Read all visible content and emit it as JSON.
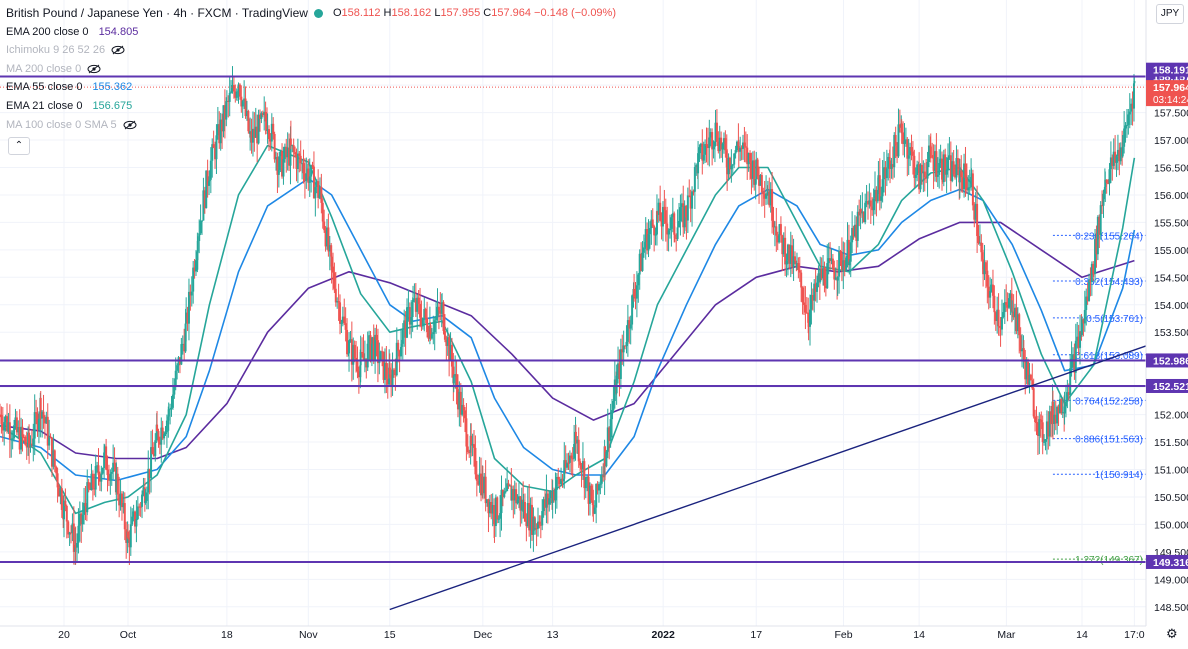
{
  "legend": {
    "title": "British Pound / Japanese Yen · 4h · FXCM · TradingView",
    "ohlc": {
      "o_label": "O",
      "o": "158.112",
      "h_label": "H",
      "h": "158.162",
      "l_label": "L",
      "l": "157.955",
      "c_label": "C",
      "c": "157.964",
      "change": "−0.148 (−0.09%)"
    },
    "indicators": [
      {
        "name": "EMA 200 close 0",
        "value": "154.805",
        "color": "#5b2c9f",
        "hidden": false
      },
      {
        "name": "Ichimoku 9 26 52 26",
        "value": "",
        "color": "#b2b5be",
        "hidden": true
      },
      {
        "name": "MA 200 close 0",
        "value": "",
        "color": "#b2b5be",
        "hidden": true
      },
      {
        "name": "EMA 55 close 0",
        "value": "155.362",
        "color": "#1e88e5",
        "hidden": false
      },
      {
        "name": "EMA 21 close 0",
        "value": "156.675",
        "color": "#26a69a",
        "hidden": false
      },
      {
        "name": "MA 100 close 0 SMA 5",
        "value": "",
        "color": "#b2b5be",
        "hidden": true
      }
    ],
    "collapse_symbol": "⌃"
  },
  "currency_button": "JPY",
  "settings_icon": "gear-icon",
  "colors": {
    "up": "#26a69a",
    "down": "#ef5350",
    "ema21": "#26a69a",
    "ema55": "#1e88e5",
    "ema200": "#5b2c9f",
    "hline": "#5e35b1",
    "trendline": "#1a237e",
    "fib_line": "#2962ff",
    "fib_text": "#2962ff",
    "fib_ext_text": "#43a047"
  },
  "chart_data": {
    "type": "candlestick",
    "symbol": "GBPJPY",
    "timeframe": "4h",
    "ylim": [
      148.15,
      159.55
    ],
    "y_ticks": [
      "158.000",
      "157.500",
      "157.000",
      "156.500",
      "156.000",
      "155.500",
      "155.000",
      "154.500",
      "154.000",
      "153.500",
      "153.000",
      "152.500",
      "152.000",
      "151.500",
      "151.000",
      "150.500",
      "150.000",
      "149.500",
      "149.000",
      "148.500"
    ],
    "x_ticks": [
      "20",
      "Oct",
      "18",
      "Nov",
      "15",
      "Dec",
      "13",
      "2022",
      "17",
      "Feb",
      "14",
      "Mar",
      "14",
      "17:0"
    ],
    "x_tick_dates": [
      "2021-09-20",
      "2021-10-01",
      "2021-10-18",
      "2021-11-01",
      "2021-11-15",
      "2021-12-01",
      "2021-12-13",
      "2022-01-01",
      "2022-01-17",
      "2022-02-01",
      "2022-02-14",
      "2022-03-01",
      "2022-03-14",
      "2022-03-23"
    ],
    "x_range": [
      "2021-09-09",
      "2022-03-25"
    ],
    "price_series": [
      [
        "2021-09-09",
        152.0
      ],
      [
        "2021-09-14",
        151.4
      ],
      [
        "2021-09-16",
        152.2
      ],
      [
        "2021-09-20",
        150.3
      ],
      [
        "2021-09-22",
        149.6
      ],
      [
        "2021-09-24",
        150.5
      ],
      [
        "2021-09-27",
        151.2
      ],
      [
        "2021-09-29",
        150.8
      ],
      [
        "2021-10-01",
        149.7
      ],
      [
        "2021-10-04",
        150.7
      ],
      [
        "2021-10-06",
        151.6
      ],
      [
        "2021-10-08",
        152.0
      ],
      [
        "2021-10-11",
        153.6
      ],
      [
        "2021-10-13",
        155.3
      ],
      [
        "2021-10-15",
        156.5
      ],
      [
        "2021-10-18",
        157.6
      ],
      [
        "2021-10-20",
        158.1
      ],
      [
        "2021-10-22",
        157.0
      ],
      [
        "2021-10-25",
        157.4
      ],
      [
        "2021-10-27",
        156.5
      ],
      [
        "2021-10-29",
        156.8
      ],
      [
        "2021-11-01",
        156.4
      ],
      [
        "2021-11-03",
        156.0
      ],
      [
        "2021-11-05",
        154.6
      ],
      [
        "2021-11-08",
        153.2
      ],
      [
        "2021-11-10",
        152.9
      ],
      [
        "2021-11-12",
        153.3
      ],
      [
        "2021-11-15",
        152.6
      ],
      [
        "2021-11-17",
        153.4
      ],
      [
        "2021-11-19",
        154.0
      ],
      [
        "2021-11-22",
        153.6
      ],
      [
        "2021-11-24",
        153.9
      ],
      [
        "2021-11-26",
        152.7
      ],
      [
        "2021-11-29",
        151.3
      ],
      [
        "2021-12-01",
        150.7
      ],
      [
        "2021-12-03",
        150.2
      ],
      [
        "2021-12-06",
        150.6
      ],
      [
        "2021-12-08",
        150.3
      ],
      [
        "2021-12-10",
        150.0
      ],
      [
        "2021-12-13",
        150.6
      ],
      [
        "2021-12-15",
        150.9
      ],
      [
        "2021-12-17",
        151.6
      ],
      [
        "2021-12-20",
        150.2
      ],
      [
        "2021-12-22",
        151.3
      ],
      [
        "2021-12-24",
        152.6
      ],
      [
        "2021-12-27",
        154.2
      ],
      [
        "2021-12-29",
        155.2
      ],
      [
        "2021-12-31",
        155.6
      ],
      [
        "2022-01-03",
        155.4
      ],
      [
        "2022-01-05",
        155.7
      ],
      [
        "2022-01-07",
        156.6
      ],
      [
        "2022-01-10",
        157.2
      ],
      [
        "2022-01-12",
        156.6
      ],
      [
        "2022-01-14",
        156.9
      ],
      [
        "2022-01-17",
        156.4
      ],
      [
        "2022-01-19",
        156.1
      ],
      [
        "2022-01-21",
        155.2
      ],
      [
        "2022-01-24",
        154.6
      ],
      [
        "2022-01-26",
        153.8
      ],
      [
        "2022-01-28",
        154.5
      ],
      [
        "2022-01-31",
        154.7
      ],
      [
        "2022-02-02",
        155.0
      ],
      [
        "2022-02-04",
        155.6
      ],
      [
        "2022-02-07",
        156.1
      ],
      [
        "2022-02-09",
        156.6
      ],
      [
        "2022-02-11",
        157.2
      ],
      [
        "2022-02-14",
        156.3
      ],
      [
        "2022-02-16",
        156.7
      ],
      [
        "2022-02-18",
        156.5
      ],
      [
        "2022-02-21",
        156.4
      ],
      [
        "2022-02-23",
        156.2
      ],
      [
        "2022-02-25",
        154.6
      ],
      [
        "2022-02-28",
        153.7
      ],
      [
        "2022-03-02",
        154.1
      ],
      [
        "2022-03-04",
        153.0
      ],
      [
        "2022-03-07",
        151.6
      ],
      [
        "2022-03-09",
        152.0
      ],
      [
        "2022-03-11",
        152.3
      ],
      [
        "2022-03-14",
        153.6
      ],
      [
        "2022-03-16",
        154.8
      ],
      [
        "2022-03-18",
        156.3
      ],
      [
        "2022-03-21",
        156.9
      ],
      [
        "2022-03-23",
        158.0
      ]
    ],
    "ema21_series": [
      [
        "2021-09-09",
        151.8
      ],
      [
        "2021-09-16",
        151.3
      ],
      [
        "2021-09-22",
        150.2
      ],
      [
        "2021-09-27",
        150.4
      ],
      [
        "2021-10-01",
        150.5
      ],
      [
        "2021-10-06",
        150.9
      ],
      [
        "2021-10-11",
        152.0
      ],
      [
        "2021-10-15",
        154.0
      ],
      [
        "2021-10-20",
        156.0
      ],
      [
        "2021-10-25",
        156.9
      ],
      [
        "2021-11-01",
        156.6
      ],
      [
        "2021-11-05",
        155.6
      ],
      [
        "2021-11-10",
        154.2
      ],
      [
        "2021-11-15",
        153.5
      ],
      [
        "2021-11-19",
        153.6
      ],
      [
        "2021-11-24",
        153.7
      ],
      [
        "2021-11-29",
        152.6
      ],
      [
        "2021-12-03",
        151.2
      ],
      [
        "2021-12-08",
        150.7
      ],
      [
        "2021-12-13",
        150.6
      ],
      [
        "2021-12-17",
        150.9
      ],
      [
        "2021-12-22",
        151.2
      ],
      [
        "2021-12-27",
        152.6
      ],
      [
        "2021-12-31",
        154.0
      ],
      [
        "2022-01-05",
        155.0
      ],
      [
        "2022-01-10",
        156.0
      ],
      [
        "2022-01-14",
        156.5
      ],
      [
        "2022-01-19",
        156.5
      ],
      [
        "2022-01-24",
        155.5
      ],
      [
        "2022-01-28",
        154.7
      ],
      [
        "2022-02-02",
        154.6
      ],
      [
        "2022-02-07",
        155.1
      ],
      [
        "2022-02-11",
        155.9
      ],
      [
        "2022-02-16",
        156.4
      ],
      [
        "2022-02-21",
        156.5
      ],
      [
        "2022-02-25",
        155.9
      ],
      [
        "2022-03-02",
        154.6
      ],
      [
        "2022-03-07",
        153.1
      ],
      [
        "2022-03-11",
        152.2
      ],
      [
        "2022-03-16",
        152.9
      ],
      [
        "2022-03-21",
        155.4
      ],
      [
        "2022-03-23",
        156.675
      ]
    ],
    "ema55_series": [
      [
        "2021-09-09",
        151.6
      ],
      [
        "2021-09-16",
        151.4
      ],
      [
        "2021-09-22",
        150.9
      ],
      [
        "2021-09-29",
        150.8
      ],
      [
        "2021-10-06",
        151.0
      ],
      [
        "2021-10-11",
        151.6
      ],
      [
        "2021-10-15",
        152.8
      ],
      [
        "2021-10-20",
        154.6
      ],
      [
        "2021-10-25",
        155.8
      ],
      [
        "2021-11-01",
        156.3
      ],
      [
        "2021-11-05",
        156.0
      ],
      [
        "2021-11-10",
        155.0
      ],
      [
        "2021-11-15",
        154.0
      ],
      [
        "2021-11-19",
        153.7
      ],
      [
        "2021-11-24",
        153.8
      ],
      [
        "2021-11-29",
        153.4
      ],
      [
        "2021-12-03",
        152.3
      ],
      [
        "2021-12-08",
        151.4
      ],
      [
        "2021-12-13",
        151.0
      ],
      [
        "2021-12-17",
        150.9
      ],
      [
        "2021-12-22",
        150.9
      ],
      [
        "2021-12-27",
        151.6
      ],
      [
        "2021-12-31",
        152.8
      ],
      [
        "2022-01-05",
        154.0
      ],
      [
        "2022-01-10",
        155.1
      ],
      [
        "2022-01-14",
        155.8
      ],
      [
        "2022-01-19",
        156.1
      ],
      [
        "2022-01-24",
        155.8
      ],
      [
        "2022-01-28",
        155.1
      ],
      [
        "2022-02-02",
        154.9
      ],
      [
        "2022-02-07",
        155.0
      ],
      [
        "2022-02-11",
        155.5
      ],
      [
        "2022-02-16",
        155.9
      ],
      [
        "2022-02-21",
        156.1
      ],
      [
        "2022-02-25",
        155.9
      ],
      [
        "2022-03-02",
        155.1
      ],
      [
        "2022-03-07",
        153.9
      ],
      [
        "2022-03-11",
        152.8
      ],
      [
        "2022-03-16",
        152.9
      ],
      [
        "2022-03-21",
        154.3
      ],
      [
        "2022-03-23",
        155.362
      ]
    ],
    "ema200_series": [
      [
        "2021-09-09",
        151.8
      ],
      [
        "2021-09-16",
        151.7
      ],
      [
        "2021-09-22",
        151.3
      ],
      [
        "2021-09-29",
        151.2
      ],
      [
        "2021-10-06",
        151.2
      ],
      [
        "2021-10-11",
        151.4
      ],
      [
        "2021-10-18",
        152.2
      ],
      [
        "2021-10-25",
        153.5
      ],
      [
        "2021-11-01",
        154.3
      ],
      [
        "2021-11-08",
        154.6
      ],
      [
        "2021-11-15",
        154.4
      ],
      [
        "2021-11-22",
        154.1
      ],
      [
        "2021-11-29",
        153.8
      ],
      [
        "2021-12-06",
        153.1
      ],
      [
        "2021-12-13",
        152.3
      ],
      [
        "2021-12-20",
        151.9
      ],
      [
        "2021-12-27",
        152.2
      ],
      [
        "2022-01-03",
        153.1
      ],
      [
        "2022-01-10",
        154.0
      ],
      [
        "2022-01-17",
        154.5
      ],
      [
        "2022-01-24",
        154.7
      ],
      [
        "2022-01-31",
        154.6
      ],
      [
        "2022-02-07",
        154.7
      ],
      [
        "2022-02-14",
        155.2
      ],
      [
        "2022-02-21",
        155.5
      ],
      [
        "2022-02-28",
        155.5
      ],
      [
        "2022-03-07",
        155.0
      ],
      [
        "2022-03-14",
        154.5
      ],
      [
        "2022-03-23",
        154.805
      ]
    ],
    "horizontal_levels": [
      {
        "price": 158.157,
        "label": "158.157"
      },
      {
        "price": 152.986,
        "label": "152.986"
      },
      {
        "price": 152.521,
        "label": "152.521"
      },
      {
        "price": 149.316,
        "label": "149.316"
      }
    ],
    "current_price": {
      "price": 157.964,
      "label": "157.964",
      "countdown": "03:14:24"
    },
    "high_marker": {
      "price": 158.191,
      "label": "158.191"
    },
    "trendline": {
      "start": [
        "2021-11-15",
        148.45
      ],
      "end": [
        "2022-03-25",
        153.25
      ]
    },
    "fibonacci": {
      "x_start": "2022-03-09",
      "x_end": "2022-03-25",
      "levels": [
        {
          "label": "0.236(155.264)",
          "price": 155.264,
          "extension": false
        },
        {
          "label": "0.382(154.433)",
          "price": 154.433,
          "extension": false
        },
        {
          "label": "0.5(153.761)",
          "price": 153.761,
          "extension": false
        },
        {
          "label": "0.618(153.089)",
          "price": 153.089,
          "extension": false
        },
        {
          "label": "0.764(152.258)",
          "price": 152.258,
          "extension": false
        },
        {
          "label": "0.886(151.563)",
          "price": 151.563,
          "extension": false
        },
        {
          "label": "1(150.914)",
          "price": 150.914,
          "extension": false
        },
        {
          "label": "1.272(149.367)",
          "price": 149.367,
          "extension": true
        }
      ]
    }
  }
}
